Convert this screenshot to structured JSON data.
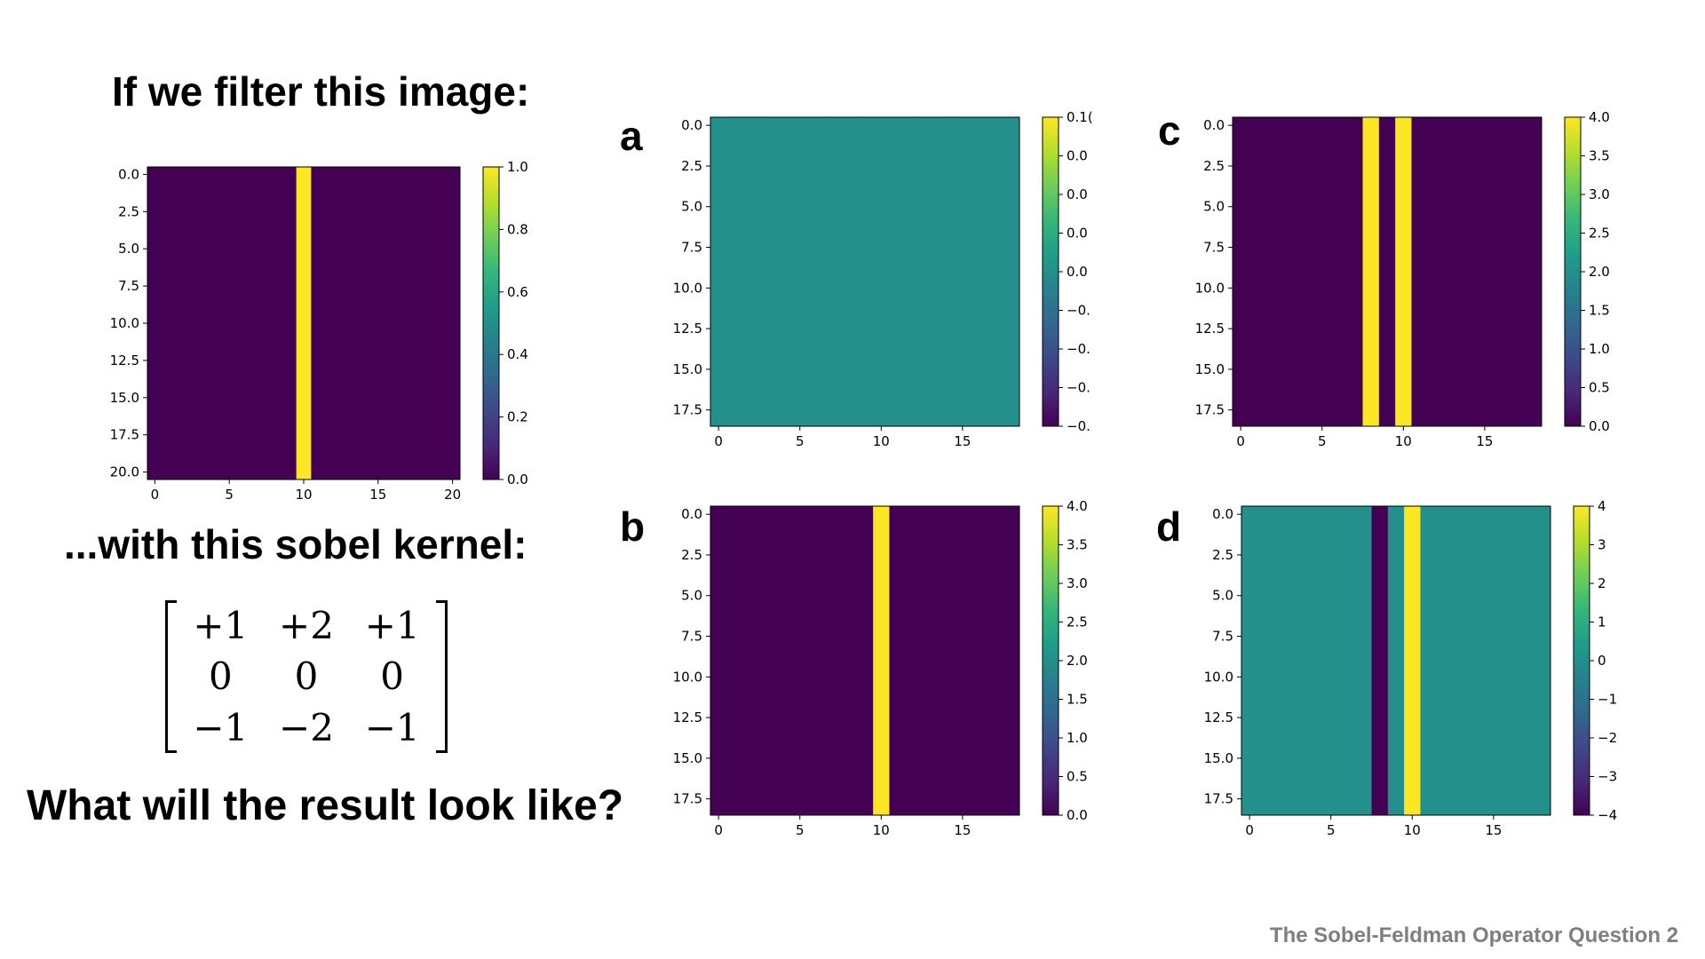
{
  "headings": {
    "filter_prompt": "If we filter this image:",
    "kernel_prompt": "...with this sobel kernel:",
    "question": "What will the result look like?"
  },
  "kernel": {
    "matrix": [
      [
        "+1",
        "+2",
        "+1"
      ],
      [
        "0",
        "0",
        "0"
      ],
      [
        "−1",
        "−2",
        "−1"
      ]
    ]
  },
  "footer": "The Sobel-Feldman Operator Question 2",
  "colors": {
    "dark": "#440154",
    "yellow": "#fde725",
    "teal": "#21918c",
    "footer_text": "#7f7f7f"
  },
  "chart_data": [
    {
      "id": "input",
      "label": "",
      "type": "heatmap",
      "colormap": "viridis",
      "rows": 21,
      "cols": 21,
      "background_value": 0,
      "stripes": [
        {
          "col": 10,
          "value": 1
        }
      ],
      "clim": [
        0,
        1
      ],
      "xticks": [
        "0",
        "5",
        "10",
        "15",
        "20"
      ],
      "yticks": [
        "0.0",
        "2.5",
        "5.0",
        "7.5",
        "10.0",
        "12.5",
        "15.0",
        "17.5",
        "20.0"
      ],
      "colorbar_ticks": [
        "0.0",
        "0.2",
        "0.4",
        "0.6",
        "0.8",
        "1.0"
      ]
    },
    {
      "id": "a",
      "label": "a",
      "type": "heatmap",
      "colormap": "viridis",
      "rows": 19,
      "cols": 19,
      "background_value": 0,
      "stripes": [],
      "clim": [
        -0.1,
        0.1
      ],
      "xticks": [
        "0",
        "5",
        "10",
        "15"
      ],
      "yticks": [
        "0.0",
        "2.5",
        "5.0",
        "7.5",
        "10.0",
        "12.5",
        "15.0",
        "17.5"
      ],
      "colorbar_ticks": [
        "−0.",
        "−0.",
        "−0.",
        "−0.",
        "0.0",
        "0.0",
        "0.0",
        "0.0",
        "0.1("
      ]
    },
    {
      "id": "b",
      "label": "b",
      "type": "heatmap",
      "colormap": "viridis",
      "rows": 19,
      "cols": 19,
      "background_value": 0,
      "stripes": [
        {
          "col": 10,
          "value": 4
        }
      ],
      "clim": [
        0,
        4
      ],
      "xticks": [
        "0",
        "5",
        "10",
        "15"
      ],
      "yticks": [
        "0.0",
        "2.5",
        "5.0",
        "7.5",
        "10.0",
        "12.5",
        "15.0",
        "17.5"
      ],
      "colorbar_ticks": [
        "0.0",
        "0.5",
        "1.0",
        "1.5",
        "2.0",
        "2.5",
        "3.0",
        "3.5",
        "4.0"
      ]
    },
    {
      "id": "c",
      "label": "c",
      "type": "heatmap",
      "colormap": "viridis",
      "rows": 19,
      "cols": 19,
      "background_value": 0,
      "stripes": [
        {
          "col": 8,
          "value": 4
        },
        {
          "col": 10,
          "value": 4
        }
      ],
      "clim": [
        0,
        4
      ],
      "xticks": [
        "0",
        "5",
        "10",
        "15"
      ],
      "yticks": [
        "0.0",
        "2.5",
        "5.0",
        "7.5",
        "10.0",
        "12.5",
        "15.0",
        "17.5"
      ],
      "colorbar_ticks": [
        "0.0",
        "0.5",
        "1.0",
        "1.5",
        "2.0",
        "2.5",
        "3.0",
        "3.5",
        "4.0"
      ]
    },
    {
      "id": "d",
      "label": "d",
      "type": "heatmap",
      "colormap": "viridis",
      "rows": 19,
      "cols": 19,
      "background_value": 0,
      "stripes": [
        {
          "col": 8,
          "value": -4
        },
        {
          "col": 10,
          "value": 4
        }
      ],
      "clim": [
        -4,
        4
      ],
      "xticks": [
        "0",
        "5",
        "10",
        "15"
      ],
      "yticks": [
        "0.0",
        "2.5",
        "5.0",
        "7.5",
        "10.0",
        "12.5",
        "15.0",
        "17.5"
      ],
      "colorbar_ticks": [
        "−4",
        "−3",
        "−2",
        "−1",
        "0",
        "1",
        "2",
        "3",
        "4"
      ]
    }
  ]
}
